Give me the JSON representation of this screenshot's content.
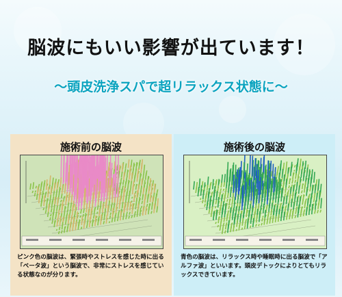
{
  "headline": "脳波にもいい影響が出ています！",
  "subheadline": "～頭皮洗浄スパで超リラックス状態に～",
  "before": {
    "title": "施術前の脳波",
    "description": "ピンク色の脳波は、緊張時やストレスを感じた時に出る「ベータ波」という脳波で、非常にストレスを感じている状態なのが分ります。"
  },
  "after": {
    "title": "施術後の脳波",
    "description": "青色の脳波は、リラックス時や睡眠時に出る脳波で「アルファ波」といいます。頭皮デトックによりとてもリラックスできています。"
  },
  "colors": {
    "accent": "#0aa3bf",
    "beta_wave": "#e98ac7",
    "alpha_wave": "#1f5fc4",
    "left_bg": "#f4e3c6",
    "right_bg": "#cdeef7"
  }
}
